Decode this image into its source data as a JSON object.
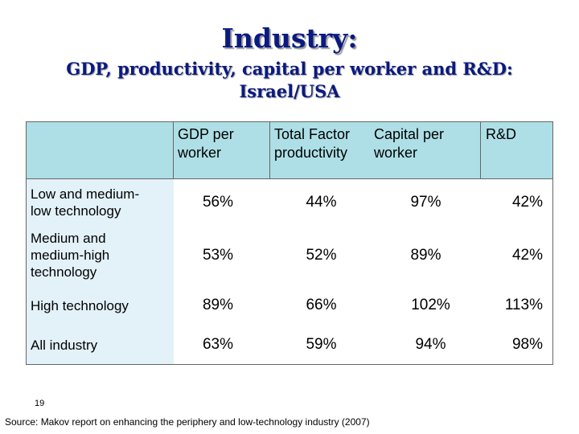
{
  "slide": {
    "title": "Industry:",
    "subtitle_line1": "GDP, productivity, capital per worker and R&D:",
    "subtitle_line2": "Israel/USA",
    "page_number": "19",
    "source": "Source: Makov report on enhancing the periphery and low-technology industry (2007)"
  },
  "table": {
    "headers": [
      {
        "line1": "GDP per",
        "line2": "worker"
      },
      {
        "line1": "Total Factor",
        "line2": "productivity"
      },
      {
        "line1": "Capital per",
        "line2": "worker"
      },
      {
        "line1": "R&D",
        "line2": ""
      }
    ],
    "rows": [
      {
        "label_line1": "Low and medium-",
        "label_line2": "low technology",
        "label_line3": "",
        "values": [
          "56%",
          "44%",
          "97%",
          "42%"
        ]
      },
      {
        "label_line1": "Medium and",
        "label_line2": "medium-high",
        "label_line3": "technology",
        "values": [
          "53%",
          "52%",
          "89%",
          "42%"
        ]
      },
      {
        "label_line1": "High technology",
        "label_line2": "",
        "label_line3": "",
        "values": [
          "89%",
          "66%",
          "102%",
          "113%"
        ]
      },
      {
        "label_line1": "All industry",
        "label_line2": "",
        "label_line3": "",
        "values": [
          "63%",
          "59%",
          "94%",
          "98%"
        ]
      }
    ]
  },
  "colors": {
    "title": "#0a1a80",
    "header_bg": "#aedfe6",
    "row_label_bg": "#e3f1f9"
  }
}
